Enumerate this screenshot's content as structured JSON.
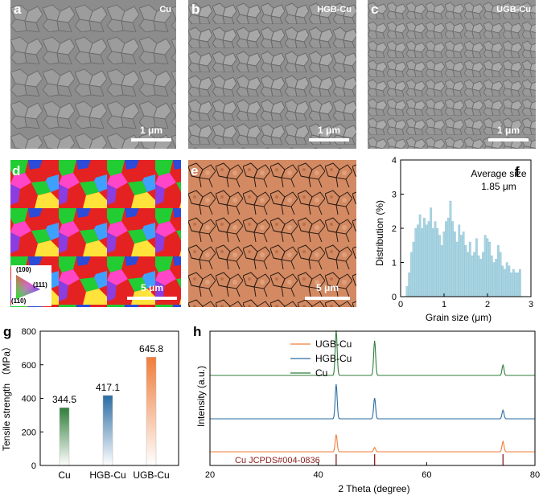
{
  "panels": {
    "a": {
      "label": "a",
      "tag": "Cu",
      "scale": "1 μm"
    },
    "b": {
      "label": "b",
      "tag": "HGB-Cu",
      "scale": "1 μm"
    },
    "c": {
      "label": "c",
      "tag": "UGB-Cu",
      "scale": "1 μm"
    },
    "d": {
      "label": "d",
      "scale": "5 μm",
      "legend": [
        "(100)",
        "(111)",
        "(110)"
      ]
    },
    "e": {
      "label": "e",
      "scale": "5 μm"
    },
    "f": {
      "label": "f"
    },
    "g": {
      "label": "g"
    },
    "h": {
      "label": "h"
    }
  },
  "colors": {
    "cu": "#2f7d3a",
    "hgb": "#2b6ca3",
    "ugb": "#f07d3a",
    "hist": "#a9d4e2",
    "ref": "#8b1c1c"
  },
  "chart_data": [
    {
      "id": "f",
      "type": "bar",
      "xlabel": "Grain size (μm)",
      "ylabel": "Distribution (%)",
      "xlim": [
        0,
        3
      ],
      "ylim": [
        0,
        4
      ],
      "xticks": [
        "0",
        "1",
        "2",
        "3"
      ],
      "yticks": [
        "0",
        "1",
        "2",
        "3",
        "4"
      ],
      "annotation": [
        "Average size",
        "1.85 μm"
      ],
      "x": [
        0.15,
        0.2,
        0.25,
        0.3,
        0.35,
        0.4,
        0.45,
        0.5,
        0.55,
        0.6,
        0.65,
        0.7,
        0.75,
        0.8,
        0.85,
        0.9,
        0.95,
        1.0,
        1.05,
        1.1,
        1.15,
        1.2,
        1.25,
        1.3,
        1.35,
        1.4,
        1.45,
        1.5,
        1.55,
        1.6,
        1.65,
        1.7,
        1.75,
        1.8,
        1.85,
        1.9,
        1.95,
        2.0,
        2.05,
        2.1,
        2.15,
        2.2,
        2.25,
        2.3,
        2.35,
        2.4,
        2.45,
        2.5,
        2.55,
        2.6,
        2.65,
        2.7,
        2.75
      ],
      "values": [
        0.3,
        0.7,
        1.3,
        1.6,
        2.0,
        2.1,
        2.4,
        2.0,
        2.3,
        2.1,
        2.2,
        2.6,
        2.0,
        2.2,
        2.0,
        1.8,
        1.5,
        1.9,
        2.2,
        2.3,
        2.8,
        2.2,
        1.9,
        1.6,
        2.1,
        1.8,
        1.9,
        1.5,
        1.3,
        1.6,
        1.2,
        1.3,
        1.7,
        1.2,
        1.1,
        1.3,
        1.8,
        1.7,
        1.6,
        1.2,
        1.0,
        1.1,
        1.5,
        1.3,
        0.9,
        0.8,
        1.0,
        0.9,
        0.7,
        0.8,
        0.7,
        0.7,
        0.8
      ]
    },
    {
      "id": "g",
      "type": "bar",
      "ylabel": "Tensile strength （MPa）",
      "ylim": [
        0,
        800
      ],
      "yticks": [
        "0",
        "200",
        "400",
        "600",
        "800"
      ],
      "categories": [
        "Cu",
        "HGB-Cu",
        "UGB-Cu"
      ],
      "values": [
        344.5,
        417.1,
        645.8
      ],
      "value_labels": [
        "344.5",
        "417.1",
        "645.8"
      ]
    },
    {
      "id": "h",
      "type": "line",
      "xlabel": "2 Theta (degree)",
      "ylabel": "Intensity (a.u.)",
      "xlim": [
        20,
        80
      ],
      "xticks": [
        "20",
        "40",
        "60",
        "80"
      ],
      "series": [
        {
          "name": "UGB-Cu",
          "peaks": [
            [
              43.3,
              1.0
            ],
            [
              50.4,
              0.25
            ],
            [
              74.1,
              0.6
            ]
          ]
        },
        {
          "name": "HGB-Cu",
          "peaks": [
            [
              43.3,
              2.0
            ],
            [
              50.4,
              1.2
            ],
            [
              74.1,
              0.5
            ]
          ]
        },
        {
          "name": "Cu",
          "peaks": [
            [
              43.3,
              2.6
            ],
            [
              50.4,
              2.0
            ],
            [
              74.1,
              0.6
            ]
          ]
        }
      ],
      "reference": {
        "label": "Cu JCPDS#004-0836",
        "peaks": [
          43.3,
          50.4,
          74.1
        ]
      }
    }
  ]
}
